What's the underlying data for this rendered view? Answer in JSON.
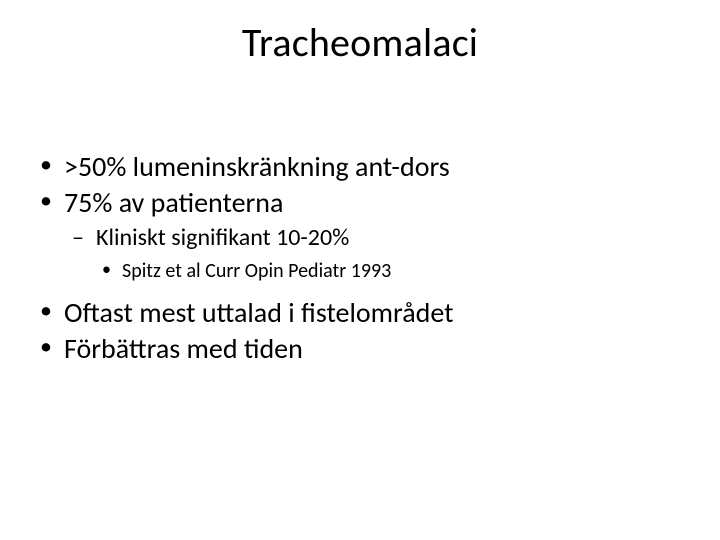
{
  "slide": {
    "title": "Tracheomalaci",
    "bullets": {
      "b1": ">50% lumeninskränkning ant-dors",
      "b2": "75% av patienterna",
      "b2_1": "Kliniskt signifikant 10-20%",
      "b2_1_1": "Spitz et al Curr Opin Pediatr 1993",
      "b3": "Oftast mest uttalad i fistelområdet",
      "b4": "Förbättras med tiden"
    }
  },
  "style": {
    "background_color": "#ffffff",
    "text_color": "#000000",
    "title_fontsize": 40,
    "l1_fontsize": 28,
    "l2_fontsize": 24,
    "l3_fontsize": 20,
    "font_family": "Calibri"
  }
}
